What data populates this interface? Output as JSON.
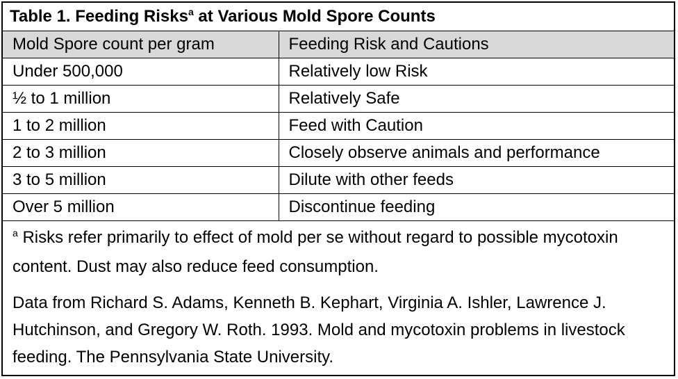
{
  "table": {
    "title_prefix": "Table 1. Feeding Risks",
    "title_superscript": "a",
    "title_suffix": " at Various Mold Spore Counts",
    "headers": [
      "Mold Spore count per gram",
      "Feeding Risk and Cautions"
    ],
    "rows": [
      [
        "Under 500,000",
        "Relatively low Risk"
      ],
      [
        "½ to 1 million",
        "Relatively Safe"
      ],
      [
        "1 to 2 million",
        "Feed with Caution"
      ],
      [
        "2 to 3 million",
        "Closely observe animals and performance"
      ],
      [
        "3 to 5 million",
        "Dilute with other feeds"
      ],
      [
        "Over 5 million",
        "Discontinue feeding"
      ]
    ]
  },
  "footnote": {
    "marker": "a",
    "text": " Risks refer primarily to effect of mold per se without regard to possible mycotoxin content.  Dust may also reduce feed consumption.",
    "source": "Data from Richard S. Adams, Kenneth B. Kephart, Virginia A. Ishler, Lawrence J. Hutchinson, and Gregory W. Roth. 1993. Mold and mycotoxin problems in livestock feeding. The Pennsylvania State University."
  }
}
